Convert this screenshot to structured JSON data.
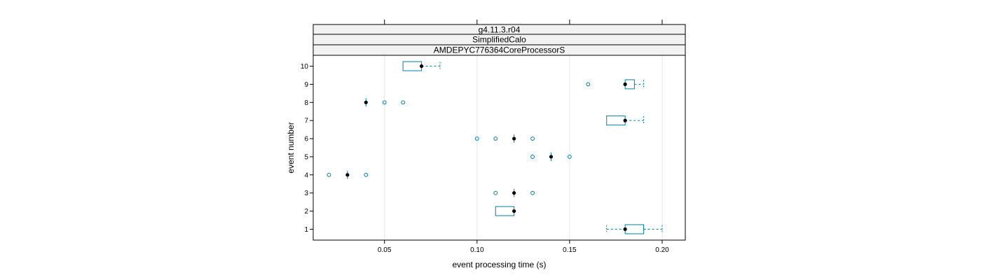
{
  "chart_data": {
    "type": "boxplot",
    "panel_strips": [
      "g4.11.3.r04",
      "SimplifiedCalo",
      "AMDEPYC776364CoreProcessorS"
    ],
    "xlabel": "event processing time (s)",
    "ylabel": "event number",
    "xlim": [
      0.0115,
      0.2125
    ],
    "ylim": [
      0.4,
      10.6
    ],
    "x_ticks": [
      0.05,
      0.1,
      0.15,
      0.2
    ],
    "x_tick_labels": [
      "0.05",
      "0.10",
      "0.15",
      "0.20"
    ],
    "y_ticks": [
      1,
      2,
      3,
      4,
      5,
      6,
      7,
      8,
      9,
      10
    ],
    "y_tick_labels": [
      "1",
      "2",
      "3",
      "4",
      "5",
      "6",
      "7",
      "8",
      "9",
      "10"
    ],
    "grid": "vertical",
    "colors": {
      "box": "#0080a0",
      "median": "#000000",
      "outlier": "#0080a0",
      "grid": "#e6e6e6",
      "strip_bg": "#f2f2f2",
      "frame": "#000000"
    },
    "boxes": [
      {
        "event": 1,
        "whisker_low": 0.17,
        "q1": 0.18,
        "median": 0.18,
        "q3": 0.19,
        "whisker_high": 0.2,
        "outliers": []
      },
      {
        "event": 2,
        "whisker_low": 0.11,
        "q1": 0.11,
        "median": 0.12,
        "q3": 0.12,
        "whisker_high": 0.12,
        "outliers": []
      },
      {
        "event": 3,
        "whisker_low": 0.12,
        "q1": 0.12,
        "median": 0.12,
        "q3": 0.12,
        "whisker_high": 0.12,
        "outliers": [
          0.11,
          0.13
        ]
      },
      {
        "event": 4,
        "whisker_low": 0.03,
        "q1": 0.03,
        "median": 0.03,
        "q3": 0.03,
        "whisker_high": 0.03,
        "outliers": [
          0.02,
          0.04
        ]
      },
      {
        "event": 5,
        "whisker_low": 0.14,
        "q1": 0.14,
        "median": 0.14,
        "q3": 0.14,
        "whisker_high": 0.14,
        "outliers": [
          0.13,
          0.15
        ]
      },
      {
        "event": 6,
        "whisker_low": 0.12,
        "q1": 0.12,
        "median": 0.12,
        "q3": 0.12,
        "whisker_high": 0.12,
        "outliers": [
          0.1,
          0.11,
          0.13
        ]
      },
      {
        "event": 7,
        "whisker_low": 0.17,
        "q1": 0.17,
        "median": 0.18,
        "q3": 0.18,
        "whisker_high": 0.19,
        "outliers": []
      },
      {
        "event": 8,
        "whisker_low": 0.04,
        "q1": 0.04,
        "median": 0.04,
        "q3": 0.04,
        "whisker_high": 0.04,
        "outliers": [
          0.05,
          0.06
        ]
      },
      {
        "event": 9,
        "whisker_low": 0.18,
        "q1": 0.18,
        "median": 0.18,
        "q3": 0.185,
        "whisker_high": 0.19,
        "outliers": [
          0.16
        ]
      },
      {
        "event": 10,
        "whisker_low": 0.06,
        "q1": 0.06,
        "median": 0.07,
        "q3": 0.07,
        "whisker_high": 0.08,
        "outliers": []
      }
    ]
  }
}
